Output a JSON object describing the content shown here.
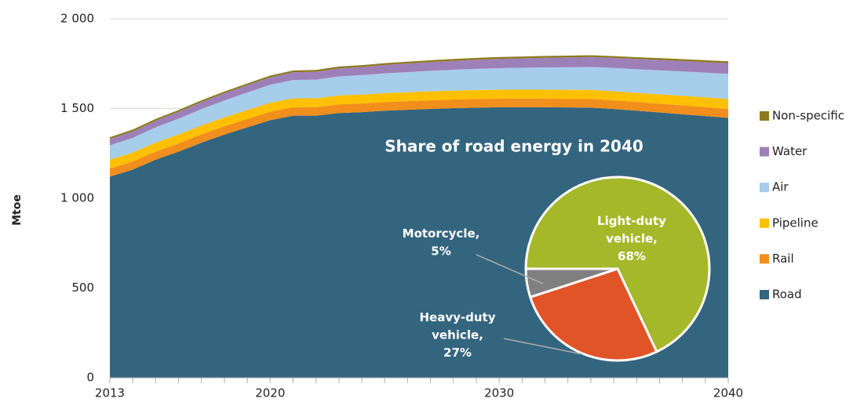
{
  "chart_data": [
    {
      "type": "area",
      "y_label": "Mtoe",
      "x": [
        2013,
        2014,
        2015,
        2016,
        2017,
        2018,
        2019,
        2020,
        2021,
        2022,
        2023,
        2024,
        2025,
        2026,
        2027,
        2028,
        2029,
        2030,
        2031,
        2032,
        2033,
        2034,
        2035,
        2036,
        2037,
        2038,
        2039,
        2040
      ],
      "xlim": [
        2013,
        2040
      ],
      "xticks": [
        2013,
        2020,
        2030,
        2040
      ],
      "ylim": [
        0,
        2000
      ],
      "yticks": [
        0,
        500,
        {
          "value": 1000,
          "label": "1 000"
        },
        {
          "value": 1500,
          "label": "1 500"
        },
        {
          "value": 2000,
          "label": "2 000"
        }
      ],
      "grid": true,
      "stacked": true,
      "legend": "right",
      "series": [
        {
          "name": "Road",
          "color": "#34657f",
          "values": [
            1120,
            1160,
            1215,
            1260,
            1310,
            1355,
            1395,
            1435,
            1460,
            1460,
            1475,
            1480,
            1488,
            1493,
            1498,
            1502,
            1505,
            1507,
            1507,
            1507,
            1506,
            1505,
            1497,
            1488,
            1478,
            1468,
            1458,
            1448
          ]
        },
        {
          "name": "Rail",
          "color": "#f28e1c",
          "values": [
            45,
            45,
            45,
            46,
            46,
            46,
            47,
            47,
            47,
            47,
            48,
            48,
            48,
            48,
            48,
            48,
            48,
            48,
            48,
            48,
            48,
            49,
            49,
            49,
            49,
            50,
            50,
            50
          ]
        },
        {
          "name": "Pipeline",
          "color": "#ffc000",
          "values": [
            50,
            50,
            50,
            50,
            50,
            50,
            50,
            50,
            50,
            50,
            50,
            50,
            50,
            50,
            50,
            50,
            50,
            50,
            50,
            50,
            50,
            50,
            50,
            50,
            52,
            53,
            54,
            55
          ]
        },
        {
          "name": "Air",
          "color": "#a6cdea",
          "values": [
            80,
            82,
            85,
            88,
            91,
            94,
            97,
            100,
            102,
            104,
            106,
            108,
            110,
            112,
            114,
            116,
            118,
            120,
            122,
            124,
            126,
            128,
            130,
            132,
            134,
            136,
            138,
            140
          ]
        },
        {
          "name": "Water",
          "color": "#9e80b8",
          "values": [
            35,
            36,
            37,
            38,
            39,
            40,
            41,
            42,
            43,
            44,
            45,
            46,
            47,
            48,
            49,
            50,
            51,
            52,
            53,
            54,
            55,
            55,
            56,
            57,
            58,
            58,
            59,
            60
          ]
        },
        {
          "name": "Non-specific",
          "color": "#8c7a1c",
          "values": [
            10,
            10,
            10,
            10,
            10,
            10,
            10,
            10,
            10,
            10,
            10,
            10,
            10,
            10,
            10,
            10,
            10,
            10,
            10,
            10,
            10,
            10,
            10,
            10,
            10,
            10,
            10,
            10
          ]
        }
      ]
    },
    {
      "type": "pie",
      "title": "Share of road energy in 2040",
      "labels": [
        "Light-duty vehicle, 68%",
        "Heavy-duty vehicle, 27%",
        "Motorcycle, 5%"
      ],
      "values": [
        68,
        27,
        5
      ],
      "colors": [
        "#a5b82a",
        "#e15427",
        "#808080"
      ]
    }
  ]
}
